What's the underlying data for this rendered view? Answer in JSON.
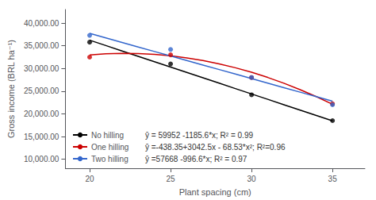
{
  "chart_data": {
    "type": "scatter",
    "xlabel": "Plant spacing (cm)",
    "ylabel": "Gross income (BRL ha⁻¹)",
    "xlim": [
      18.5,
      37
    ],
    "ylim": [
      8000,
      43000
    ],
    "xticks": [
      20,
      25,
      30,
      35
    ],
    "yticks": [
      {
        "value": 10000,
        "label": "10,000.00"
      },
      {
        "value": 15000,
        "label": "15,000.00"
      },
      {
        "value": 20000,
        "label": "20,000.00"
      },
      {
        "value": 25000,
        "label": "25,000.00"
      },
      {
        "value": 30000,
        "label": "30,000.00"
      },
      {
        "value": 35000,
        "label": "35,000.00"
      },
      {
        "value": 40000,
        "label": "40,000.00"
      }
    ],
    "grid": false,
    "legend": "lower left",
    "x": [
      20,
      25,
      30,
      35
    ],
    "series": [
      {
        "name": "No hilling",
        "color": "#000000",
        "marker": "circle",
        "values": [
          35800,
          31000,
          24200,
          18500
        ],
        "fit_x": [
          20,
          21,
          22,
          23,
          24,
          25,
          26,
          27,
          28,
          29,
          30,
          31,
          32,
          33,
          34,
          35
        ],
        "fit_values": [
          36240,
          35054.4,
          33868.8,
          32683.2,
          31497.6,
          30312,
          29126.4,
          27940.8,
          26755.2,
          25569.6,
          24384,
          23198.4,
          22012.8,
          20827.2,
          19641.6,
          18456
        ],
        "equation": "ŷ = 59952 -1185.6*x; R² = 0.99"
      },
      {
        "name": "One hilling",
        "color": "#cc0000",
        "marker": "circle",
        "values": [
          32500,
          33000,
          28000,
          22200
        ],
        "fit_x": [
          20,
          21,
          22,
          23,
          24,
          25,
          26,
          27,
          28,
          29,
          30,
          31,
          32,
          33,
          34,
          35
        ],
        "fit_values": [
          32999.65,
          33232.42,
          33328.13,
          33286.78,
          33108.37,
          32792.9,
          32340.37,
          31750.78,
          31024.13,
          30160.42,
          29159.65,
          28021.82,
          26746.93,
          25334.98,
          23785.97,
          22099.9
        ],
        "equation": "ŷ =-438.35+3042.5x - 68.53*x²; R²=0.96"
      },
      {
        "name": "Two hilling",
        "color": "#3366cc",
        "marker": "circle",
        "values": [
          37300,
          34200,
          28000,
          22000
        ],
        "fit_x": [
          20,
          21,
          22,
          23,
          24,
          25,
          26,
          27,
          28,
          29,
          30,
          31,
          32,
          33,
          34,
          35
        ],
        "fit_values": [
          37736,
          36739.4,
          35742.8,
          34746.2,
          33749.6,
          32753,
          31756.4,
          30759.8,
          29763.2,
          28766.6,
          27770,
          26773.4,
          25776.8,
          24780.2,
          23783.6,
          22787
        ],
        "equation": "ŷ =57668 -996.6*x; R² = 0.97"
      }
    ]
  }
}
